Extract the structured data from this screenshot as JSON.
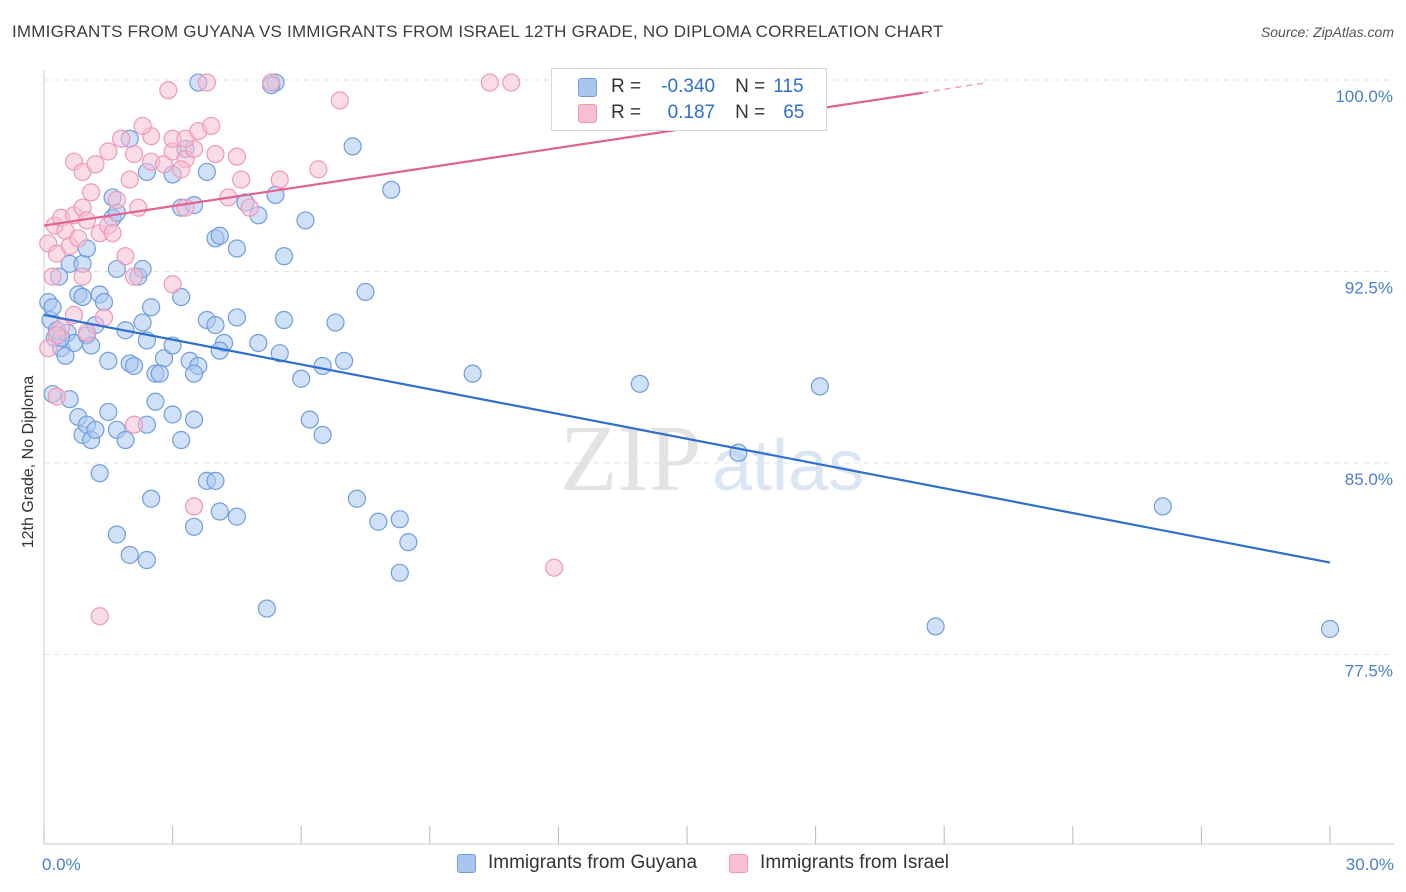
{
  "title": "IMMIGRANTS FROM GUYANA VS IMMIGRANTS FROM ISRAEL 12TH GRADE, NO DIPLOMA CORRELATION CHART",
  "source": "Source: ZipAtlas.com",
  "watermark": {
    "zip": "ZIP",
    "atlas": "atlas"
  },
  "legend": {
    "guyana": {
      "r_label": "R =",
      "r_value": "-0.340",
      "n_label": "N =",
      "n_value": "115"
    },
    "israel": {
      "r_label": "R =",
      "r_value": "0.187",
      "n_label": "N =",
      "n_value": "65"
    }
  },
  "colors": {
    "guyana_fill": "#a9c6ef",
    "guyana_stroke": "#6f9ee0",
    "guyana_line": "#2f6fd0",
    "israel_fill": "#f6bfd3",
    "israel_stroke": "#ef98b8",
    "israel_line": "#e0638f",
    "grid": "#e2e2e2",
    "axis_text": "#4a7fcf"
  },
  "chart_data": {
    "type": "scatter",
    "title": "IMMIGRANTS FROM GUYANA VS IMMIGRANTS FROM ISRAEL 12TH GRADE, NO DIPLOMA CORRELATION CHART",
    "xlabel": "",
    "ylabel": "12th Grade, No Diploma",
    "x_unit": "%",
    "xlim": [
      0,
      30
    ],
    "ylim": [
      70.0,
      101.5
    ],
    "x_ticks": [
      "0.0%",
      "30.0%"
    ],
    "y_ticks": [
      {
        "value": 100.0,
        "label": "100.0%"
      },
      {
        "value": 92.5,
        "label": "92.5%"
      },
      {
        "value": 85.0,
        "label": "85.0%"
      },
      {
        "value": 77.5,
        "label": "77.5%"
      }
    ],
    "grid": true,
    "legend_position": "bottom",
    "series": [
      {
        "name": "Immigrants from Guyana",
        "r": -0.34,
        "n": 115,
        "trend": {
          "x": [
            0,
            30
          ],
          "y": [
            90.8,
            81.1
          ]
        },
        "points": [
          [
            0.1,
            91.3
          ],
          [
            0.15,
            90.6
          ],
          [
            0.2,
            91.1
          ],
          [
            0.25,
            89.9
          ],
          [
            0.3,
            90.2
          ],
          [
            0.35,
            92.3
          ],
          [
            0.4,
            89.5
          ],
          [
            0.5,
            89.2
          ],
          [
            0.55,
            90.1
          ],
          [
            0.6,
            92.8
          ],
          [
            0.7,
            89.7
          ],
          [
            0.8,
            91.6
          ],
          [
            0.9,
            91.5
          ],
          [
            1.0,
            90.0
          ],
          [
            1.1,
            89.6
          ],
          [
            1.2,
            90.4
          ],
          [
            1.3,
            91.6
          ],
          [
            1.4,
            91.3
          ],
          [
            1.5,
            89.0
          ],
          [
            1.7,
            92.6
          ],
          [
            1.9,
            90.2
          ],
          [
            2.0,
            88.9
          ],
          [
            2.2,
            92.3
          ],
          [
            2.3,
            90.5
          ],
          [
            2.4,
            89.8
          ],
          [
            2.5,
            91.1
          ],
          [
            2.6,
            88.5
          ],
          [
            2.8,
            89.1
          ],
          [
            3.0,
            89.6
          ],
          [
            3.2,
            91.5
          ],
          [
            3.4,
            89.0
          ],
          [
            3.6,
            88.8
          ],
          [
            3.8,
            90.6
          ],
          [
            4.0,
            90.4
          ],
          [
            4.2,
            89.7
          ],
          [
            4.5,
            90.7
          ],
          [
            5.0,
            89.7
          ],
          [
            5.5,
            89.3
          ],
          [
            6.0,
            88.3
          ],
          [
            6.5,
            88.8
          ],
          [
            0.6,
            87.5
          ],
          [
            0.8,
            86.8
          ],
          [
            0.9,
            86.1
          ],
          [
            1.0,
            86.5
          ],
          [
            1.1,
            85.9
          ],
          [
            1.2,
            86.3
          ],
          [
            1.3,
            84.6
          ],
          [
            1.5,
            87.0
          ],
          [
            1.7,
            86.3
          ],
          [
            1.9,
            85.9
          ],
          [
            2.1,
            88.8
          ],
          [
            2.4,
            86.5
          ],
          [
            2.6,
            87.4
          ],
          [
            3.0,
            86.9
          ],
          [
            3.5,
            86.7
          ],
          [
            3.8,
            84.3
          ],
          [
            4.0,
            84.3
          ],
          [
            4.1,
            83.1
          ],
          [
            4.5,
            82.9
          ],
          [
            6.2,
            86.7
          ],
          [
            6.5,
            86.1
          ],
          [
            7.3,
            83.6
          ],
          [
            7.8,
            82.7
          ],
          [
            8.3,
            82.8
          ],
          [
            8.5,
            81.9
          ],
          [
            8.3,
            80.7
          ],
          [
            2.5,
            83.6
          ],
          [
            1.7,
            82.2
          ],
          [
            2.0,
            81.4
          ],
          [
            2.4,
            81.2
          ],
          [
            3.5,
            82.5
          ],
          [
            5.2,
            79.3
          ],
          [
            0.9,
            92.8
          ],
          [
            1.0,
            93.4
          ],
          [
            1.6,
            94.6
          ],
          [
            1.7,
            94.8
          ],
          [
            2.3,
            92.6
          ],
          [
            3.2,
            95.0
          ],
          [
            3.5,
            95.1
          ],
          [
            4.0,
            93.8
          ],
          [
            4.5,
            93.4
          ],
          [
            5.0,
            94.7
          ],
          [
            5.4,
            95.5
          ],
          [
            5.6,
            93.1
          ],
          [
            6.1,
            94.5
          ],
          [
            3.8,
            96.4
          ],
          [
            2.0,
            97.7
          ],
          [
            1.6,
            95.4
          ],
          [
            2.4,
            96.4
          ],
          [
            3.0,
            96.3
          ],
          [
            3.3,
            97.3
          ],
          [
            7.2,
            97.4
          ],
          [
            8.1,
            95.7
          ],
          [
            3.6,
            99.9
          ],
          [
            5.4,
            99.9
          ],
          [
            5.3,
            99.8
          ],
          [
            4.1,
            93.9
          ],
          [
            4.7,
            95.2
          ],
          [
            2.7,
            88.5
          ],
          [
            3.5,
            88.5
          ],
          [
            4.1,
            89.4
          ],
          [
            7.5,
            91.7
          ],
          [
            6.8,
            90.5
          ],
          [
            7.0,
            89.0
          ],
          [
            5.6,
            90.6
          ],
          [
            10.0,
            88.5
          ],
          [
            13.9,
            88.1
          ],
          [
            16.2,
            85.4
          ],
          [
            18.1,
            88.0
          ],
          [
            26.1,
            83.3
          ],
          [
            20.8,
            78.6
          ],
          [
            30.0,
            78.5
          ],
          [
            0.2,
            87.7
          ],
          [
            0.4,
            89.9
          ],
          [
            3.2,
            85.9
          ]
        ]
      },
      {
        "name": "Immigrants from Israel",
        "r": 0.187,
        "n": 65,
        "trend": {
          "x": [
            0,
            20.5
          ],
          "y": [
            94.3,
            99.5
          ]
        },
        "trend_dashed": {
          "x": [
            20.5,
            22.0
          ],
          "y": [
            99.5,
            99.9
          ]
        },
        "points": [
          [
            0.1,
            93.6
          ],
          [
            0.2,
            92.3
          ],
          [
            0.25,
            94.3
          ],
          [
            0.3,
            93.2
          ],
          [
            0.4,
            94.6
          ],
          [
            0.5,
            94.1
          ],
          [
            0.6,
            93.5
          ],
          [
            0.7,
            94.7
          ],
          [
            0.8,
            93.8
          ],
          [
            0.9,
            95.0
          ],
          [
            1.0,
            94.5
          ],
          [
            1.1,
            95.6
          ],
          [
            1.3,
            94.0
          ],
          [
            1.5,
            94.3
          ],
          [
            1.7,
            95.3
          ],
          [
            2.0,
            96.1
          ],
          [
            2.2,
            95.0
          ],
          [
            2.5,
            96.8
          ],
          [
            2.8,
            96.7
          ],
          [
            3.0,
            97.2
          ],
          [
            3.3,
            96.9
          ],
          [
            3.5,
            97.3
          ],
          [
            4.0,
            97.1
          ],
          [
            4.5,
            97.0
          ],
          [
            0.7,
            96.8
          ],
          [
            0.9,
            96.4
          ],
          [
            1.2,
            96.7
          ],
          [
            1.5,
            97.2
          ],
          [
            1.8,
            97.7
          ],
          [
            2.1,
            97.1
          ],
          [
            2.5,
            97.8
          ],
          [
            3.0,
            97.7
          ],
          [
            3.3,
            97.7
          ],
          [
            3.6,
            98.0
          ],
          [
            3.9,
            98.2
          ],
          [
            2.3,
            98.2
          ],
          [
            2.9,
            99.6
          ],
          [
            3.8,
            99.9
          ],
          [
            5.3,
            99.9
          ],
          [
            6.9,
            99.2
          ],
          [
            10.4,
            99.9
          ],
          [
            10.9,
            99.9
          ],
          [
            4.3,
            95.4
          ],
          [
            4.8,
            95.0
          ],
          [
            3.3,
            95.0
          ],
          [
            1.9,
            93.1
          ],
          [
            1.6,
            94.0
          ],
          [
            2.1,
            92.3
          ],
          [
            3.0,
            92.0
          ],
          [
            0.4,
            90.3
          ],
          [
            0.7,
            90.8
          ],
          [
            1.0,
            90.1
          ],
          [
            1.4,
            90.7
          ],
          [
            0.3,
            87.6
          ],
          [
            2.1,
            86.5
          ],
          [
            3.5,
            83.3
          ],
          [
            11.9,
            80.9
          ],
          [
            1.3,
            79.0
          ],
          [
            6.4,
            96.5
          ],
          [
            3.2,
            96.5
          ],
          [
            4.6,
            96.1
          ],
          [
            5.5,
            96.1
          ],
          [
            0.9,
            92.3
          ],
          [
            0.3,
            90.0
          ],
          [
            0.1,
            89.5
          ]
        ]
      }
    ]
  }
}
